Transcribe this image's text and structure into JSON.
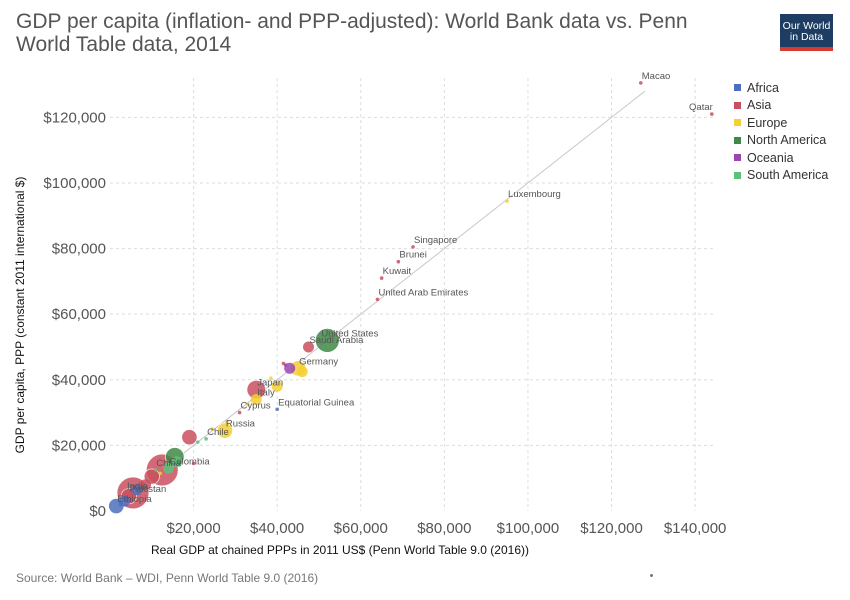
{
  "header": {
    "title": "GDP per capita (inflation- and PPP-adjusted): World Bank data vs. Penn World Table data, 2014",
    "logo_line1": "Our World",
    "logo_line2": "in Data",
    "logo_bg": "#1d3d63",
    "logo_accent": "#d73a31"
  },
  "footer": {
    "source": "Source: World Bank – WDI, Penn World Table 9.0 (2016)"
  },
  "legend": [
    {
      "name": "Africa",
      "color": "#4e6ec0"
    },
    {
      "name": "Asia",
      "color": "#c9505e"
    },
    {
      "name": "Europe",
      "color": "#f5cf33"
    },
    {
      "name": "North America",
      "color": "#3e8a45"
    },
    {
      "name": "Oceania",
      "color": "#9b47b0"
    },
    {
      "name": "South America",
      "color": "#5fbf7d"
    }
  ],
  "chart_data": {
    "type": "scatter",
    "title": "GDP per capita (inflation- and PPP-adjusted): World Bank data vs. Penn World Table data, 2014",
    "xlabel": "Real GDP at chained PPPs in 2011 US$ (Penn World Table 9.0 (2016))",
    "ylabel": "GDP per capita, PPP (constant 2011 international $)",
    "xlim": [
      0,
      145000
    ],
    "ylim": [
      0,
      132000
    ],
    "x_ticks": [
      20000,
      40000,
      60000,
      80000,
      100000,
      120000,
      140000
    ],
    "x_tick_labels": [
      "$20,000",
      "$40,000",
      "$60,000",
      "$80,000",
      "$100,000",
      "$120,000",
      "$140,000"
    ],
    "y_ticks": [
      0,
      20000,
      40000,
      60000,
      80000,
      100000,
      120000
    ],
    "y_tick_labels": [
      "$0",
      "$20,000",
      "$40,000",
      "$60,000",
      "$80,000",
      "$100,000",
      "$120,000"
    ],
    "grid": true,
    "reference_line": [
      [
        2000,
        2000
      ],
      [
        128000,
        128000
      ]
    ],
    "legend_position": "right",
    "points": [
      {
        "label": "Macao",
        "continent": "Asia",
        "x": 127000,
        "y": 130500,
        "size": 1
      },
      {
        "label": "Qatar",
        "continent": "Asia",
        "x": 144000,
        "y": 121000,
        "size": 1
      },
      {
        "label": "Luxembourg",
        "continent": "Europe",
        "x": 95000,
        "y": 94500,
        "size": 1
      },
      {
        "label": "Singapore",
        "continent": "Asia",
        "x": 72500,
        "y": 80500,
        "size": 1
      },
      {
        "label": "Brunei",
        "continent": "Asia",
        "x": 69000,
        "y": 76000,
        "size": 1
      },
      {
        "label": "Kuwait",
        "continent": "Asia",
        "x": 65000,
        "y": 71000,
        "size": 1
      },
      {
        "label": "United Arab Emirates",
        "continent": "Asia",
        "x": 64000,
        "y": 64500,
        "size": 1
      },
      {
        "label": "United States",
        "continent": "North America",
        "x": 52000,
        "y": 52000,
        "size": 6
      },
      {
        "label": "Saudi Arabia",
        "continent": "Asia",
        "x": 47500,
        "y": 50000,
        "size": 2
      },
      {
        "label": "Germany",
        "continent": "Europe",
        "x": 45000,
        "y": 43500,
        "size": 3
      },
      {
        "label": "Japan",
        "continent": "Asia",
        "x": 35000,
        "y": 37000,
        "size": 4
      },
      {
        "label": "Italy",
        "continent": "Europe",
        "x": 35000,
        "y": 34000,
        "size": 2
      },
      {
        "label": "Equatorial Guinea",
        "continent": "Africa",
        "x": 40000,
        "y": 31000,
        "size": 1
      },
      {
        "label": "Cyprus",
        "continent": "Asia",
        "x": 31000,
        "y": 30000,
        "size": 1
      },
      {
        "label": "Russia",
        "continent": "Europe",
        "x": 27500,
        "y": 24500,
        "size": 3
      },
      {
        "label": "Chile",
        "continent": "South America",
        "x": 23000,
        "y": 22000,
        "size": 1
      },
      {
        "label": "China",
        "continent": "Asia",
        "x": 12500,
        "y": 12500,
        "size": 10
      },
      {
        "label": "Colombia",
        "continent": "South America",
        "x": 14000,
        "y": 13000,
        "size": 2
      },
      {
        "label": "India",
        "continent": "Asia",
        "x": 5500,
        "y": 5500,
        "size": 10
      },
      {
        "label": "Pakistan",
        "continent": "Asia",
        "x": 4500,
        "y": 4500,
        "size": 3
      },
      {
        "label": "Ethiopia",
        "continent": "Africa",
        "x": 1500,
        "y": 1500,
        "size": 3
      },
      {
        "label": "",
        "continent": "Asia",
        "x": 19000,
        "y": 22500,
        "size": 3
      },
      {
        "label": "",
        "continent": "North America",
        "x": 15500,
        "y": 16500,
        "size": 4
      },
      {
        "label": "",
        "continent": "Europe",
        "x": 40000,
        "y": 38000,
        "size": 2
      },
      {
        "label": "",
        "continent": "Europe",
        "x": 46000,
        "y": 42500,
        "size": 2
      },
      {
        "label": "",
        "continent": "Oceania",
        "x": 43000,
        "y": 43500,
        "size": 2
      },
      {
        "label": "",
        "continent": "Oceania",
        "x": 42000,
        "y": 44500,
        "size": 1
      },
      {
        "label": "",
        "continent": "Asia",
        "x": 41500,
        "y": 45000,
        "size": 1
      },
      {
        "label": "",
        "continent": "Europe",
        "x": 38500,
        "y": 40500,
        "size": 1
      },
      {
        "label": "",
        "continent": "Europe",
        "x": 33000,
        "y": 32500,
        "size": 1
      },
      {
        "label": "",
        "continent": "Europe",
        "x": 28000,
        "y": 27000,
        "size": 1
      },
      {
        "label": "",
        "continent": "Europe",
        "x": 24500,
        "y": 25000,
        "size": 1
      },
      {
        "label": "",
        "continent": "South America",
        "x": 21000,
        "y": 21000,
        "size": 1
      },
      {
        "label": "",
        "continent": "Asia",
        "x": 20000,
        "y": 14500,
        "size": 1
      },
      {
        "label": "",
        "continent": "South America",
        "x": 16000,
        "y": 15000,
        "size": 2
      },
      {
        "label": "",
        "continent": "Asia",
        "x": 10000,
        "y": 10500,
        "size": 3
      },
      {
        "label": "",
        "continent": "Asia",
        "x": 8500,
        "y": 8000,
        "size": 2
      },
      {
        "label": "",
        "continent": "Africa",
        "x": 6500,
        "y": 6500,
        "size": 2
      },
      {
        "label": "",
        "continent": "Africa",
        "x": 3500,
        "y": 3000,
        "size": 2
      },
      {
        "label": "",
        "continent": "Africa",
        "x": 2500,
        "y": 2000,
        "size": 1
      },
      {
        "label": "",
        "continent": "Europe",
        "x": 12000,
        "y": 11500,
        "size": 1
      },
      {
        "label": "",
        "continent": "South America",
        "x": 11000,
        "y": 12500,
        "size": 1
      }
    ]
  }
}
